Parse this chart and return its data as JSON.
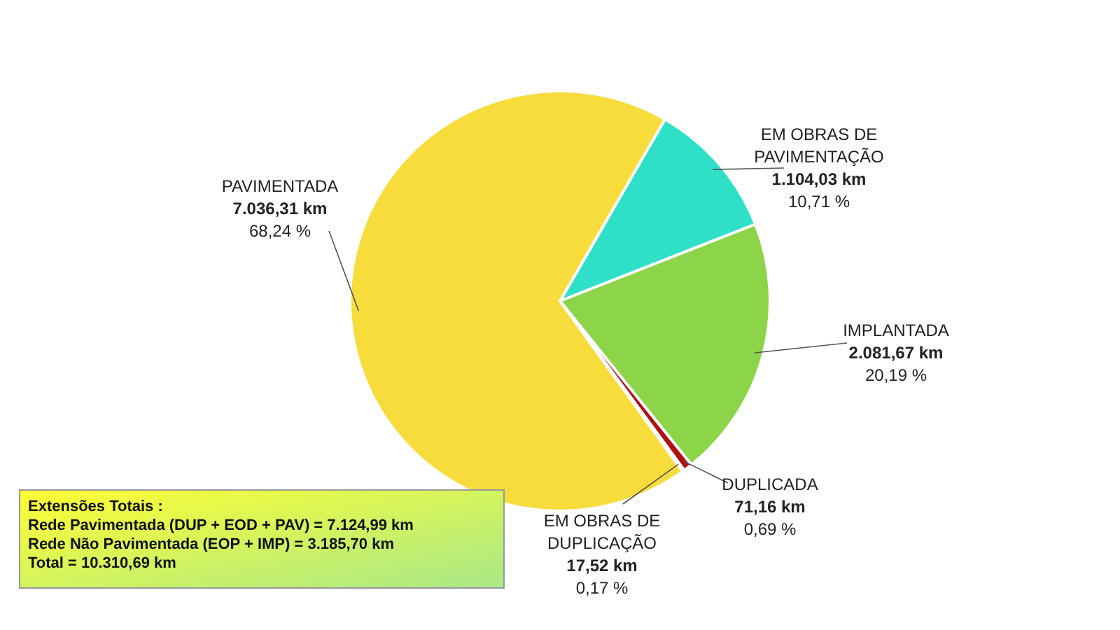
{
  "chart_data": {
    "type": "pie",
    "categories": [
      "EM OBRAS DE PAVIMENTAÇÃO",
      "IMPLANTADA",
      "DUPLICADA",
      "EM OBRAS DE DUPLICAÇÃO",
      "PAVIMENTADA"
    ],
    "values": [
      1104.03,
      2081.67,
      71.16,
      17.52,
      7036.31
    ],
    "colors": [
      "#2ee0c8",
      "#8cd448",
      "#b01010",
      "#7a0000",
      "#f7dc3c"
    ],
    "value_labels": [
      "1.104,03 km\n10,71 %",
      "2.081,67 km\n20,19 %",
      "71,16 km\n0,69 %",
      "17,52 km\n0,17 %",
      "7.036,31 km\n68,24 %"
    ],
    "annotations": [
      "Extensões Totais :",
      "Rede Pavimentada  (DUP + EOD + PAV)  = 7.124,99 km",
      "Rede Não Pavimentada  (EOP + IMP) = 3.185,70 km",
      "Total = 10.310,69 km"
    ]
  }
}
